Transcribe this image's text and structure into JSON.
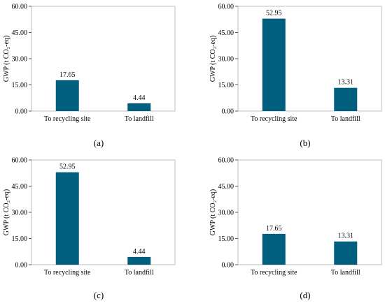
{
  "chart_data": [
    {
      "type": "bar",
      "panel_label": "(a)",
      "categories": [
        "To recycling site",
        "To landfill"
      ],
      "values": [
        17.65,
        4.44
      ],
      "value_labels": [
        "17.65",
        "4.44"
      ],
      "ylabel": "GWP (t CO₂-eq)",
      "ylim": [
        0,
        60
      ],
      "yticks": [
        "0.00",
        "15.00",
        "30.00",
        "45.00",
        "60.00"
      ],
      "bar_color": "#005f7f",
      "grid": false
    },
    {
      "type": "bar",
      "panel_label": "(b)",
      "categories": [
        "To recycling site",
        "To landfill"
      ],
      "values": [
        52.95,
        13.31
      ],
      "value_labels": [
        "52.95",
        "13.31"
      ],
      "ylabel": "GWP (t CO₂-eq)",
      "ylim": [
        0,
        60
      ],
      "yticks": [
        "0.00",
        "15.00",
        "30.00",
        "45.00",
        "60.00"
      ],
      "bar_color": "#005f7f",
      "grid": false
    },
    {
      "type": "bar",
      "panel_label": "(c)",
      "categories": [
        "To recycling site",
        "To landfill"
      ],
      "values": [
        52.95,
        4.44
      ],
      "value_labels": [
        "52.95",
        "4.44"
      ],
      "ylabel": "GWP (t CO₂-eq)",
      "ylim": [
        0,
        60
      ],
      "yticks": [
        "0.00",
        "15.00",
        "30.00",
        "45.00",
        "60.00"
      ],
      "bar_color": "#005f7f",
      "grid": false
    },
    {
      "type": "bar",
      "panel_label": "(d)",
      "categories": [
        "To recycling site",
        "To landfill"
      ],
      "values": [
        17.65,
        13.31
      ],
      "value_labels": [
        "17.65",
        "13.31"
      ],
      "ylabel": "GWP (t CO₂-eq)",
      "ylim": [
        0,
        60
      ],
      "yticks": [
        "0.00",
        "15.00",
        "30.00",
        "45.00",
        "60.00"
      ],
      "bar_color": "#005f7f",
      "grid": false
    }
  ]
}
